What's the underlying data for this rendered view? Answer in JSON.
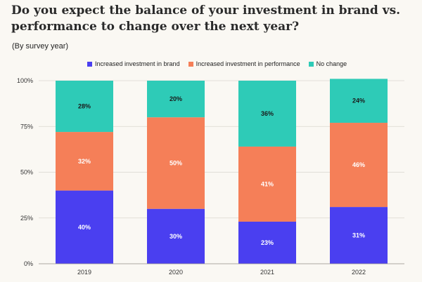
{
  "title": "Do you expect the balance of your investment in brand vs. performance to change over the next year?",
  "subtitle": "(By survey year)",
  "colors": {
    "brand": "#4a3ff0",
    "performance": "#f57f58",
    "no_change": "#2ecbb7",
    "background": "#faf8f3"
  },
  "chart_data": {
    "type": "bar",
    "stacked": true,
    "title": "Do you expect the balance of your investment in brand vs. performance to change over the next year?",
    "subtitle": "(By survey year)",
    "categories": [
      "2019",
      "2020",
      "2021",
      "2022"
    ],
    "series": [
      {
        "name": "Increased investment in brand",
        "values": [
          40,
          30,
          23,
          31
        ],
        "color": "#4a3ff0",
        "label_color": "white"
      },
      {
        "name": "Increased investment in performance",
        "values": [
          32,
          50,
          41,
          46
        ],
        "color": "#f57f58",
        "label_color": "white"
      },
      {
        "name": "No change",
        "values": [
          28,
          20,
          36,
          24
        ],
        "color": "#2ecbb7",
        "label_color": "dark"
      }
    ],
    "y_ticks": [
      "0%",
      "25%",
      "50%",
      "75%",
      "100%"
    ],
    "ylim": [
      0,
      100
    ],
    "value_suffix": "%",
    "legend_position": "top",
    "grid": true,
    "xlabel": "",
    "ylabel": ""
  }
}
